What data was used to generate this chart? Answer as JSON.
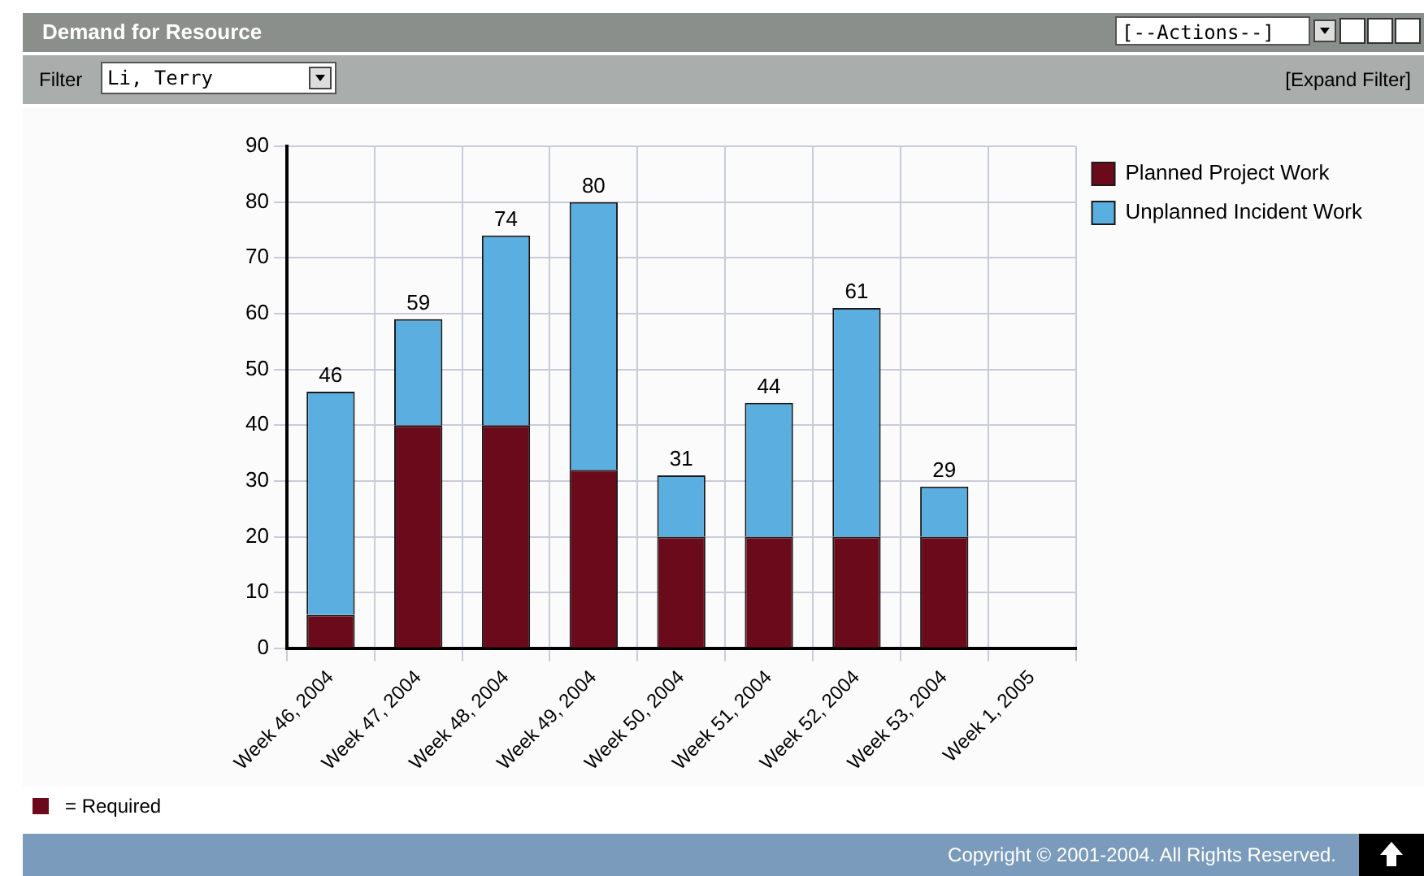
{
  "chart_data": {
    "type": "bar",
    "title": "Demand for Resource",
    "categories": [
      "Week 46, 2004",
      "Week 47, 2004",
      "Week 48, 2004",
      "Week 49, 2004",
      "Week 50, 2004",
      "Week 51, 2004",
      "Week 52, 2004",
      "Week 53, 2004",
      "Week 1, 2005"
    ],
    "series": [
      {
        "name": "Planned Project Work",
        "color": "#6b0a1a",
        "values": [
          6,
          40,
          40,
          32,
          20,
          20,
          20,
          20,
          null
        ]
      },
      {
        "name": "Unplanned Incident Work",
        "color": "#5aaee0",
        "values": [
          40,
          19,
          34,
          48,
          11,
          24,
          41,
          9,
          null
        ]
      }
    ],
    "stacked": true,
    "totals": [
      "46",
      "59",
      "74",
      "80",
      "31",
      "44",
      "61",
      "29",
      null
    ],
    "ylim": [
      0,
      90
    ],
    "yticks": [
      0,
      10,
      20,
      30,
      40,
      50,
      60,
      70,
      80,
      90
    ],
    "grid": true,
    "legend": "top right",
    "annotations": [
      "Filter",
      "Li, Terry",
      "[--Actions--]",
      "[Expand Filter]",
      "= Required",
      "Copyright © 2001-2004. All Rights Reserved."
    ]
  }
}
